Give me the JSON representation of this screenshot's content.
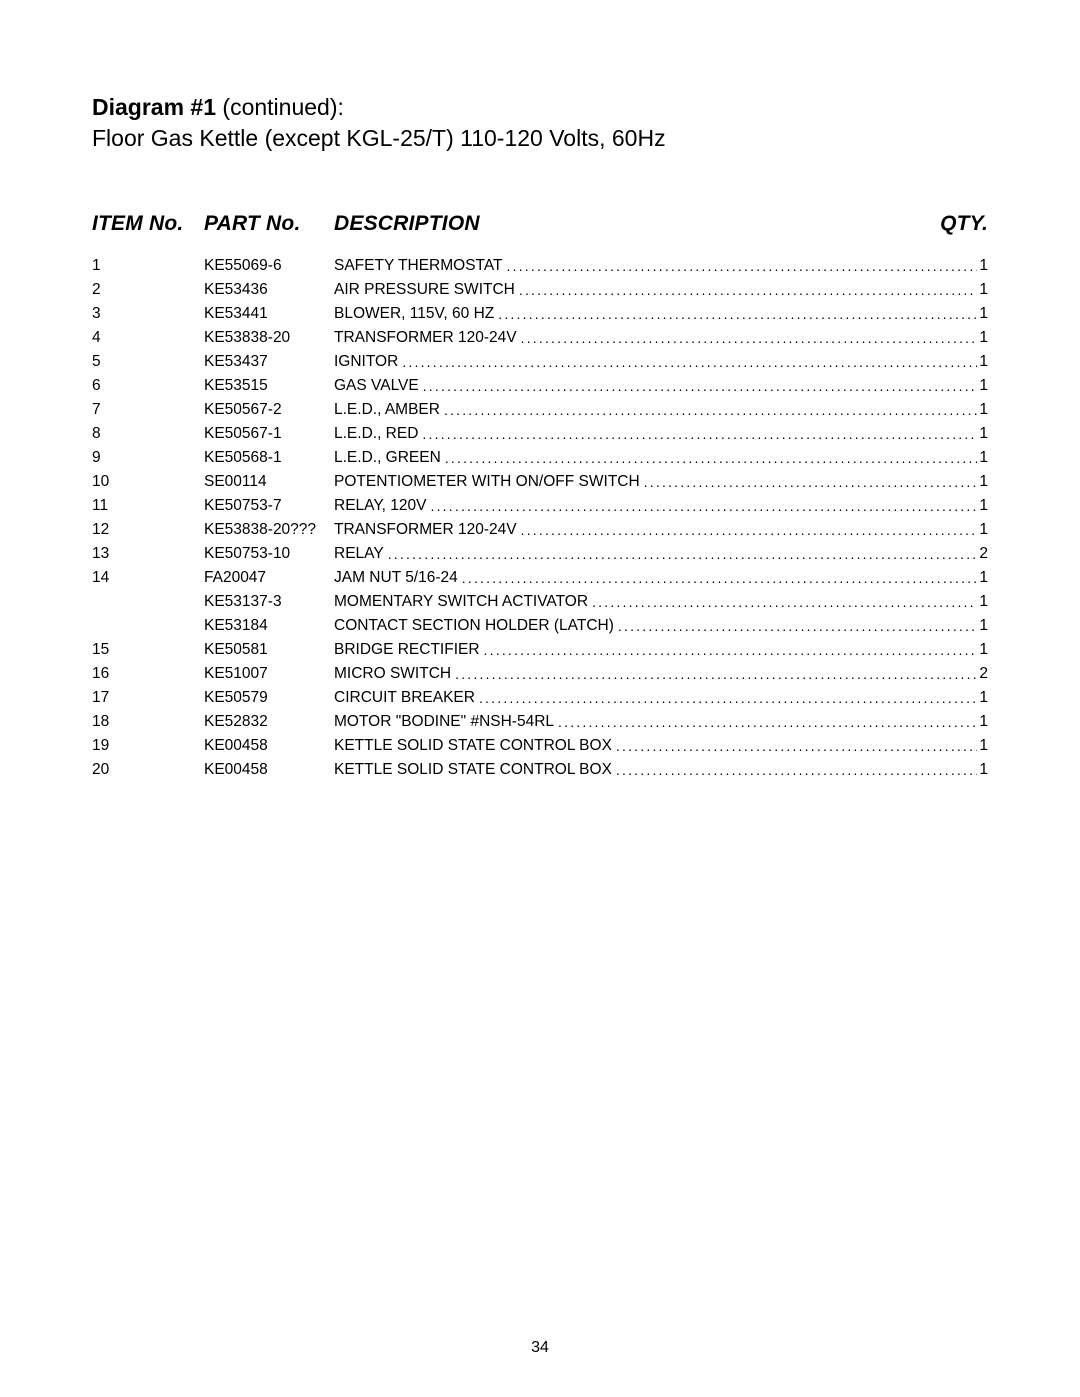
{
  "title": {
    "bold": "Diagram #1",
    "rest": " (continued):",
    "subtitle": "Floor Gas Kettle (except KGL-25/T) 110-120 Volts, 60Hz"
  },
  "headers": {
    "item": "ITEM No.",
    "part": "PART No.",
    "desc": "DESCRIPTION",
    "qty": "QTY."
  },
  "rows": [
    {
      "item": "1",
      "part": "KE55069-6",
      "desc": "SAFETY THERMOSTAT",
      "qty": "1"
    },
    {
      "item": "2",
      "part": "KE53436",
      "desc": "AIR PRESSURE SWITCH",
      "qty": "1"
    },
    {
      "item": "3",
      "part": "KE53441",
      "desc": "BLOWER, 115V, 60 HZ",
      "qty": "1"
    },
    {
      "item": "4",
      "part": "KE53838-20",
      "desc": "TRANSFORMER 120-24V",
      "qty": "1"
    },
    {
      "item": "5",
      "part": "KE53437",
      "desc": "IGNITOR",
      "qty": "1"
    },
    {
      "item": "6",
      "part": "KE53515",
      "desc": "GAS VALVE",
      "qty": "1"
    },
    {
      "item": "7",
      "part": "KE50567-2",
      "desc": "L.E.D., AMBER",
      "qty": "1"
    },
    {
      "item": "8",
      "part": "KE50567-1",
      "desc": "L.E.D., RED",
      "qty": "1"
    },
    {
      "item": "9",
      "part": "KE50568-1",
      "desc": "L.E.D., GREEN",
      "qty": "1"
    },
    {
      "item": "10",
      "part": "SE00114",
      "desc": "POTENTIOMETER WITH ON/OFF SWITCH",
      "qty": "1"
    },
    {
      "item": "11",
      "part": "KE50753-7",
      "desc": "RELAY, 120V",
      "qty": "1"
    },
    {
      "item": "12",
      "part": "KE53838-20???",
      "desc": "TRANSFORMER 120-24V",
      "qty": "1"
    },
    {
      "item": "13",
      "part": "KE50753-10",
      "desc": "RELAY",
      "qty": "2"
    },
    {
      "item": "14",
      "part": "FA20047",
      "desc": "JAM NUT 5/16-24",
      "qty": "1"
    },
    {
      "item": "",
      "part": "KE53137-3",
      "desc": "MOMENTARY SWITCH ACTIVATOR",
      "qty": "1"
    },
    {
      "item": "",
      "part": "KE53184",
      "desc": "CONTACT SECTION HOLDER (LATCH)",
      "qty": "1"
    },
    {
      "item": "15",
      "part": "KE50581",
      "desc": "BRIDGE RECTIFIER",
      "qty": "1"
    },
    {
      "item": "16",
      "part": "KE51007",
      "desc": "MICRO SWITCH",
      "qty": "2"
    },
    {
      "item": "17",
      "part": "KE50579",
      "desc": "CIRCUIT BREAKER",
      "qty": "1"
    },
    {
      "item": "18",
      "part": "KE52832",
      "desc": "MOTOR \"BODINE\" #NSH-54RL",
      "qty": "1"
    },
    {
      "item": "19",
      "part": "KE00458",
      "desc": "KETTLE SOLID STATE CONTROL BOX",
      "qty": "1"
    },
    {
      "item": "20",
      "part": "KE00458",
      "desc": "KETTLE SOLID STATE CONTROL BOX",
      "qty": "1"
    }
  ],
  "pageNumber": "34",
  "style": {
    "dotsChar": ".",
    "dotsRepeat": 200
  }
}
